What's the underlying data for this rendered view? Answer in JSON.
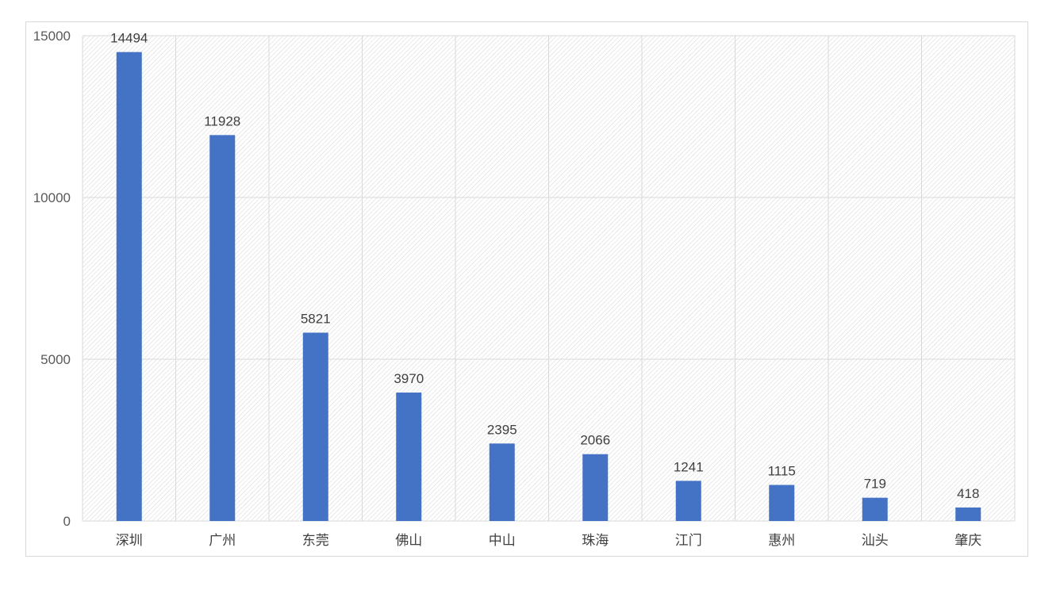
{
  "chart_data": {
    "type": "bar",
    "categories": [
      "深圳",
      "广州",
      "东莞",
      "佛山",
      "中山",
      "珠海",
      "江门",
      "惠州",
      "汕头",
      "肇庆"
    ],
    "values": [
      14494,
      11928,
      5821,
      3970,
      2395,
      2066,
      1241,
      1115,
      719,
      418
    ],
    "ylim": [
      0,
      15000
    ],
    "yticks": [
      0,
      5000,
      10000,
      15000
    ],
    "title": "",
    "xlabel": "",
    "ylabel": "",
    "grid": true,
    "legend": "none",
    "data_labels": true,
    "colors": {
      "bar": "#4472C4",
      "grid": "#d9d9d9",
      "hatch": "#d0d0d0"
    }
  }
}
